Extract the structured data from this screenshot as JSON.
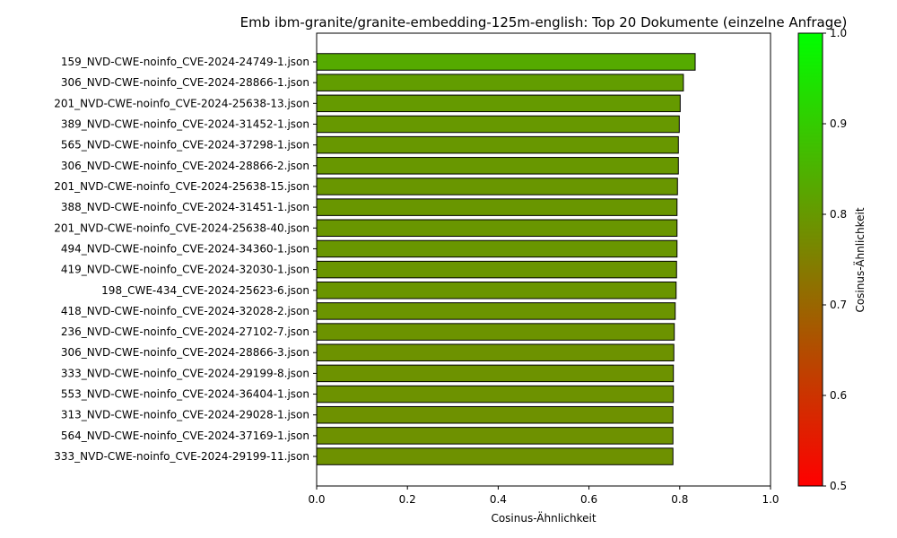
{
  "chart_data": {
    "type": "bar",
    "orientation": "horizontal",
    "title": "Emb ibm-granite/granite-embedding-125m-english: Top 20 Dokumente (einzelne Anfrage)",
    "xlabel": "Cosinus-Ähnlichkeit",
    "ylabel": "",
    "xlim": [
      0.0,
      1.0
    ],
    "x_ticks": [
      0.0,
      0.2,
      0.4,
      0.6,
      0.8,
      1.0
    ],
    "x_tick_labels": [
      "0.0",
      "0.2",
      "0.4",
      "0.6",
      "0.8",
      "1.0"
    ],
    "grid": false,
    "categories": [
      "159_NVD-CWE-noinfo_CVE-2024-24749-1.json",
      "306_NVD-CWE-noinfo_CVE-2024-28866-1.json",
      "201_NVD-CWE-noinfo_CVE-2024-25638-13.json",
      "389_NVD-CWE-noinfo_CVE-2024-31452-1.json",
      "565_NVD-CWE-noinfo_CVE-2024-37298-1.json",
      "306_NVD-CWE-noinfo_CVE-2024-28866-2.json",
      "201_NVD-CWE-noinfo_CVE-2024-25638-15.json",
      "388_NVD-CWE-noinfo_CVE-2024-31451-1.json",
      "201_NVD-CWE-noinfo_CVE-2024-25638-40.json",
      "494_NVD-CWE-noinfo_CVE-2024-34360-1.json",
      "419_NVD-CWE-noinfo_CVE-2024-32030-1.json",
      "198_CWE-434_CVE-2024-25623-6.json",
      "418_NVD-CWE-noinfo_CVE-2024-32028-2.json",
      "236_NVD-CWE-noinfo_CVE-2024-27102-7.json",
      "306_NVD-CWE-noinfo_CVE-2024-28866-3.json",
      "333_NVD-CWE-noinfo_CVE-2024-29199-8.json",
      "553_NVD-CWE-noinfo_CVE-2024-36404-1.json",
      "313_NVD-CWE-noinfo_CVE-2024-29028-1.json",
      "564_NVD-CWE-noinfo_CVE-2024-37169-1.json",
      "333_NVD-CWE-noinfo_CVE-2024-29199-11.json"
    ],
    "values": [
      0.834,
      0.808,
      0.801,
      0.799,
      0.797,
      0.797,
      0.795,
      0.794,
      0.794,
      0.794,
      0.793,
      0.792,
      0.79,
      0.788,
      0.787,
      0.786,
      0.786,
      0.785,
      0.785,
      0.785
    ],
    "bar_edge_color": "#000000",
    "colormap": {
      "name": "red-to-green",
      "low_color": "#ff0000",
      "high_color": "#00ff00",
      "range": [
        0.5,
        1.0
      ]
    },
    "colorbar": {
      "label": "Cosinus-Ähnlichkeit",
      "ticks": [
        0.5,
        0.6,
        0.7,
        0.8,
        0.9,
        1.0
      ],
      "tick_labels": [
        "0.5",
        "0.6",
        "0.7",
        "0.8",
        "0.9",
        "1.0"
      ]
    }
  }
}
